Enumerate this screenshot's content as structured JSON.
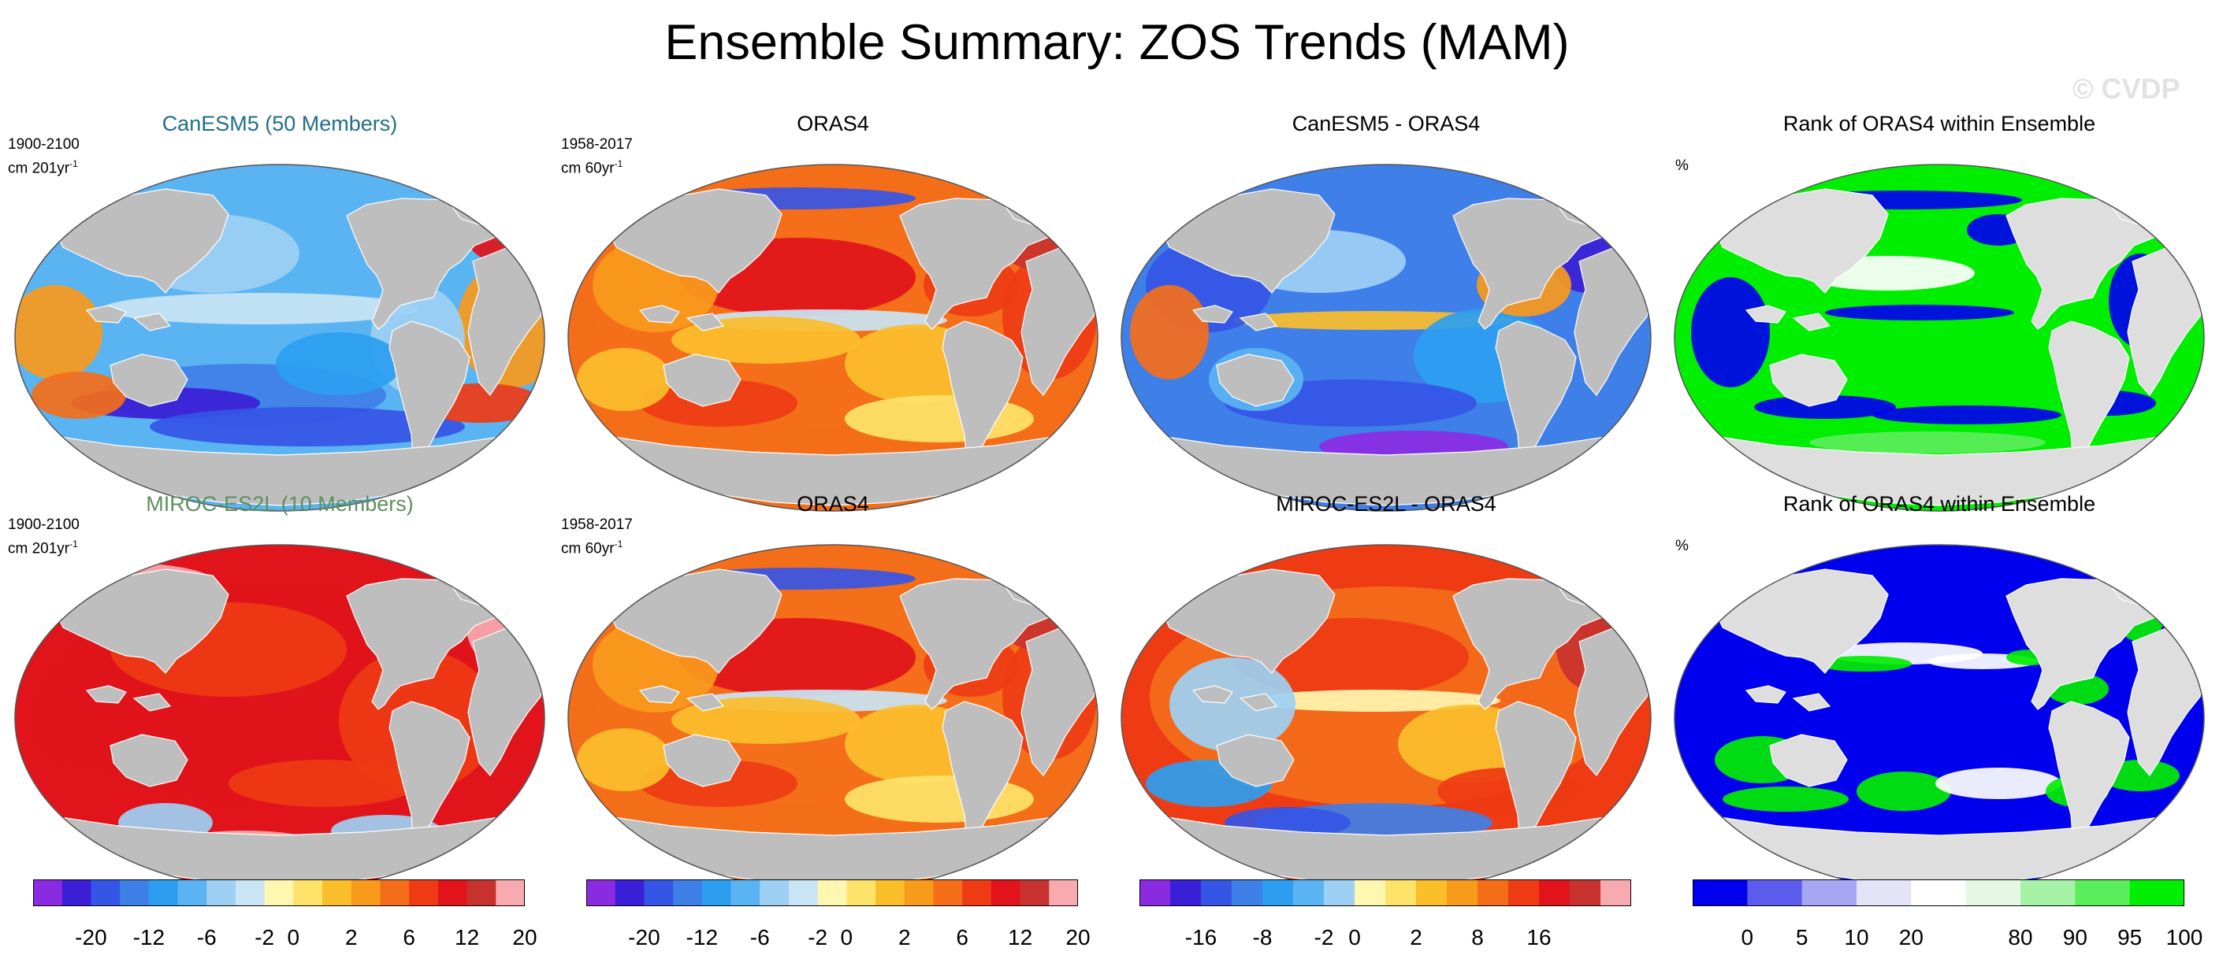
{
  "header": {
    "title": "Ensemble Summary: ZOS Trends (MAM)",
    "watermark": "© CVDP"
  },
  "rows": [
    {
      "panels": [
        {
          "title": "CanESM5 (50 Members)",
          "title_color": "#1f6f86",
          "period": "1900-2100",
          "unit": "cm 201yr",
          "unit_sup": "-1",
          "map": "ensemble-trend"
        },
        {
          "title": "ORAS4",
          "title_color": "#000000",
          "period": "1958-2017",
          "unit": "cm 60yr",
          "unit_sup": "-1",
          "map": "obs-trend"
        },
        {
          "title": "CanESM5 - ORAS4",
          "title_color": "#000000",
          "map": "difference"
        },
        {
          "title": "Rank of ORAS4 within Ensemble",
          "title_color": "#000000",
          "unit": "%",
          "map": "rank-high"
        }
      ]
    },
    {
      "panels": [
        {
          "title": "MIROC-ES2L (10 Members)",
          "title_color": "#5e8f5e",
          "period": "1900-2100",
          "unit": "cm 201yr",
          "unit_sup": "-1",
          "map": "ensemble-trend"
        },
        {
          "title": "ORAS4",
          "title_color": "#000000",
          "period": "1958-2017",
          "unit": "cm 60yr",
          "unit_sup": "-1",
          "map": "obs-trend"
        },
        {
          "title": "MIROC-ES2L - ORAS4",
          "title_color": "#000000",
          "map": "difference"
        },
        {
          "title": "Rank of ORAS4 within Ensemble",
          "title_color": "#000000",
          "unit": "%",
          "map": "rank-low"
        }
      ]
    }
  ],
  "colorbars": [
    {
      "name": "trend",
      "colors": [
        "#8a2be2",
        "#3b1fd6",
        "#3555e6",
        "#3f7fe8",
        "#2c9ef0",
        "#5ab4f2",
        "#9dd0f4",
        "#c9e4f4",
        "#fff6b0",
        "#fde36a",
        "#fbbe2b",
        "#f89a1c",
        "#f46e1a",
        "#ee3b14",
        "#e0141a",
        "#c8322e",
        "#f7aab0"
      ],
      "labels": [
        "-20",
        "-12",
        "-6",
        "-2",
        "0",
        "2",
        "6",
        "12",
        "20"
      ],
      "label_boundaries": [
        2,
        4,
        6,
        8,
        9,
        11,
        13,
        15,
        17
      ]
    },
    {
      "name": "trend-obs",
      "colors": [
        "#8a2be2",
        "#3b1fd6",
        "#3555e6",
        "#3f7fe8",
        "#2c9ef0",
        "#5ab4f2",
        "#9dd0f4",
        "#c9e4f4",
        "#fff6b0",
        "#fde36a",
        "#fbbe2b",
        "#f89a1c",
        "#f46e1a",
        "#ee3b14",
        "#e0141a",
        "#c8322e",
        "#f7aab0"
      ],
      "labels": [
        "-20",
        "-12",
        "-6",
        "-2",
        "0",
        "2",
        "6",
        "12",
        "20"
      ],
      "label_boundaries": [
        2,
        4,
        6,
        8,
        9,
        11,
        13,
        15,
        17
      ]
    },
    {
      "name": "difference",
      "colors": [
        "#8a2be2",
        "#3b1fd6",
        "#3555e6",
        "#3f7fe8",
        "#2c9ef0",
        "#5ab4f2",
        "#9dd0f4",
        "#fff6b0",
        "#fde36a",
        "#fbbe2b",
        "#f89a1c",
        "#f46e1a",
        "#ee3b14",
        "#e0141a",
        "#c8322e",
        "#f7aab0"
      ],
      "labels": [
        "-16",
        "-8",
        "-2",
        "0",
        "2",
        "8",
        "16"
      ],
      "label_boundaries": [
        2,
        4,
        6,
        7,
        9,
        11,
        13
      ]
    },
    {
      "name": "rank",
      "colors": [
        "#0000ee",
        "#5b5bee",
        "#a6a6f2",
        "#e4e4f8",
        "#ffffff",
        "#e4f8e4",
        "#a6f2a6",
        "#5bee5b",
        "#00ee00"
      ],
      "labels": [
        "0",
        "5",
        "10",
        "20",
        "80",
        "90",
        "95",
        "100"
      ],
      "label_boundaries": [
        1,
        2,
        3,
        4,
        6,
        7,
        8,
        9
      ]
    }
  ],
  "colors": {
    "land": "#bebebe",
    "land_rank": "#dedede",
    "coast": "#ffffff"
  }
}
